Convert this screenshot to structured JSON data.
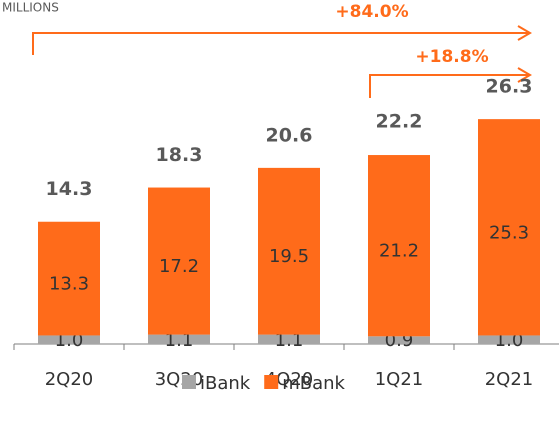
{
  "chart_data": {
    "type": "stacked_bar",
    "subtitle": "MILLIONS",
    "annotations": [
      "+84.0%",
      "+18.8%"
    ],
    "categories": [
      "2Q20",
      "3Q20",
      "4Q20",
      "1Q21",
      "2Q21"
    ],
    "series": [
      {
        "name": "iBank",
        "color": "#a6a6a6",
        "values": [
          1.0,
          1.1,
          1.1,
          0.9,
          1.0
        ],
        "value_labels": [
          "1.0",
          "1.1",
          "1.1",
          "0.9",
          "1.0"
        ]
      },
      {
        "name": "mBank",
        "color": "#ff6b1a",
        "values": [
          13.3,
          17.2,
          19.5,
          21.2,
          25.3
        ]
      }
    ],
    "totals": [
      14.3,
      18.3,
      20.6,
      22.2,
      26.3
    ],
    "ylim": [
      0,
      30
    ]
  }
}
